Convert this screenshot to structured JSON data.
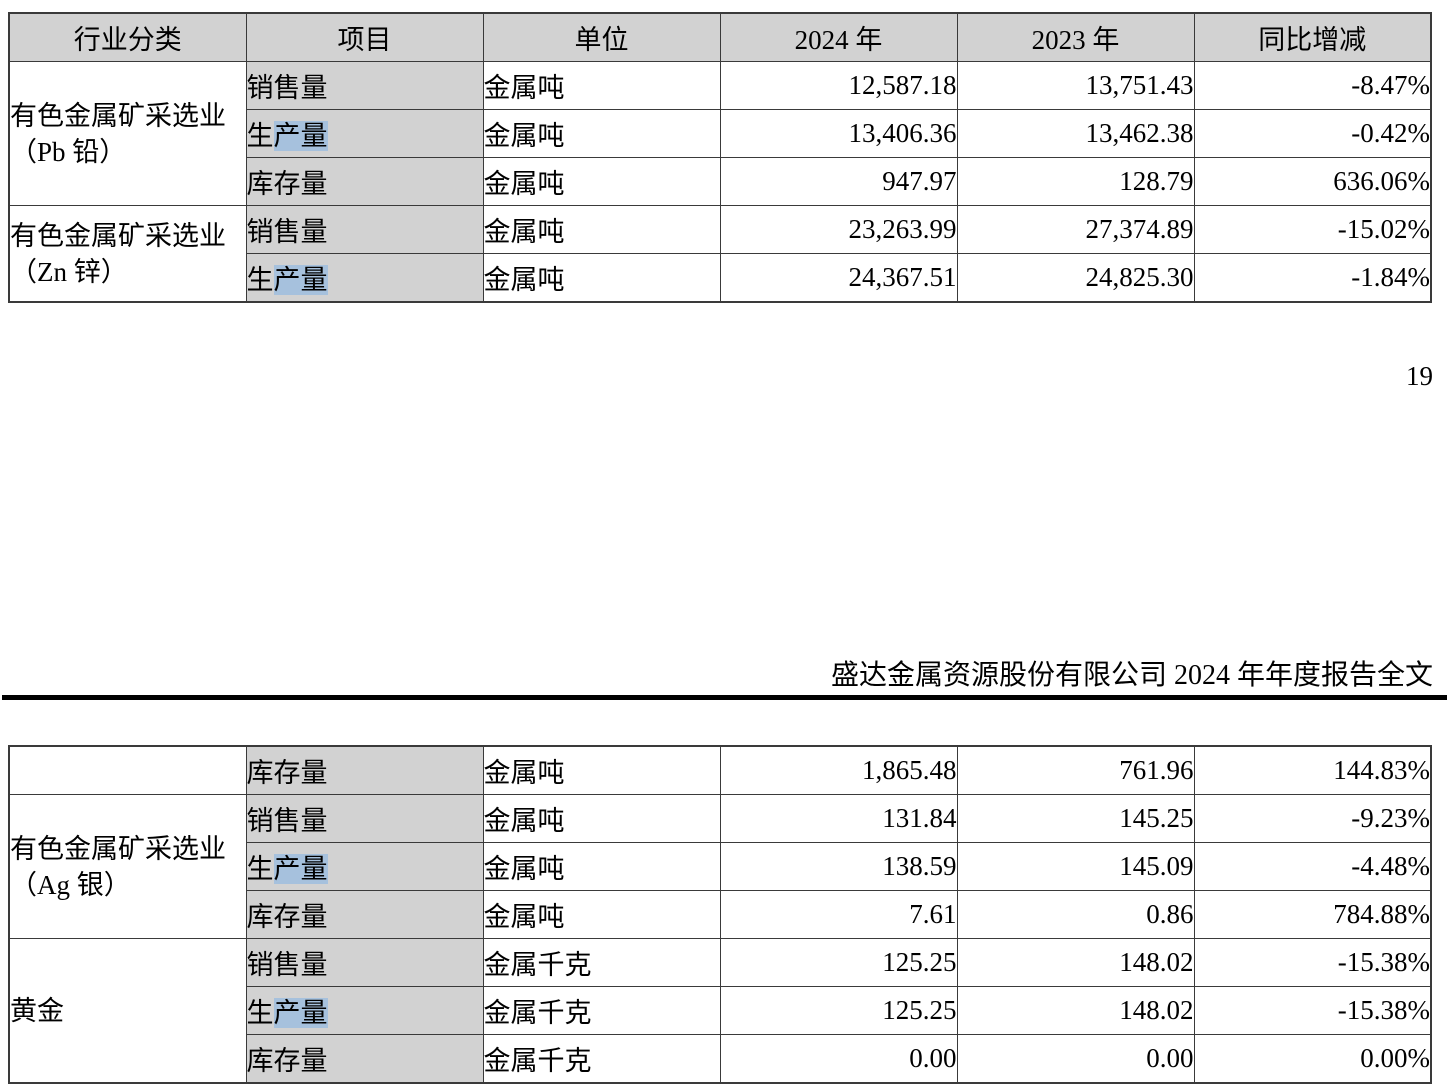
{
  "page": {
    "page_number": "19",
    "doc_header": "盛达金属资源股份有限公司 2024 年年度报告全文"
  },
  "colors": {
    "cell_shading": "#d2d2d2",
    "text_highlight": "#a6c1dd",
    "border": "#3a3a3a",
    "rule": "#000000"
  },
  "table1": {
    "headers": [
      "行业分类",
      "项目",
      "单位",
      "2024 年",
      "2023 年",
      "同比增减"
    ],
    "categories": [
      {
        "line1": "有色金属矿采选业",
        "line2": "（Pb 铅）"
      },
      {
        "line1": "有色金属矿采选业",
        "line2": "（Zn 锌）"
      }
    ],
    "rows": [
      {
        "item_plain": "销售量",
        "item_mark": "",
        "unit": "金属吨",
        "y2024": "12,587.18",
        "y2023": "13,751.43",
        "change": "-8.47%"
      },
      {
        "item_plain": "生",
        "item_mark": "产量",
        "unit": "金属吨",
        "y2024": "13,406.36",
        "y2023": "13,462.38",
        "change": "-0.42%"
      },
      {
        "item_plain": "库存量",
        "item_mark": "",
        "unit": "金属吨",
        "y2024": "947.97",
        "y2023": "128.79",
        "change": "636.06%"
      },
      {
        "item_plain": "销售量",
        "item_mark": "",
        "unit": "金属吨",
        "y2024": "23,263.99",
        "y2023": "27,374.89",
        "change": "-15.02%"
      },
      {
        "item_plain": "生",
        "item_mark": "产量",
        "unit": "金属吨",
        "y2024": "24,367.51",
        "y2023": "24,825.30",
        "change": "-1.84%"
      }
    ]
  },
  "table2": {
    "categories": [
      {
        "line1": "",
        "line2": ""
      },
      {
        "line1": "有色金属矿采选业",
        "line2": "（Ag 银）"
      },
      {
        "line1": "黄金",
        "line2": ""
      }
    ],
    "rows": [
      {
        "item_plain": "库存量",
        "item_mark": "",
        "unit": "金属吨",
        "y2024": "1,865.48",
        "y2023": "761.96",
        "change": "144.83%"
      },
      {
        "item_plain": "销售量",
        "item_mark": "",
        "unit": "金属吨",
        "y2024": "131.84",
        "y2023": "145.25",
        "change": "-9.23%"
      },
      {
        "item_plain": "生",
        "item_mark": "产量",
        "unit": "金属吨",
        "y2024": "138.59",
        "y2023": "145.09",
        "change": "-4.48%"
      },
      {
        "item_plain": "库存量",
        "item_mark": "",
        "unit": "金属吨",
        "y2024": "7.61",
        "y2023": "0.86",
        "change": "784.88%"
      },
      {
        "item_plain": "销售量",
        "item_mark": "",
        "unit": "金属千克",
        "y2024": "125.25",
        "y2023": "148.02",
        "change": "-15.38%"
      },
      {
        "item_plain": "生",
        "item_mark": "产量",
        "unit": "金属千克",
        "y2024": "125.25",
        "y2023": "148.02",
        "change": "-15.38%"
      },
      {
        "item_plain": "库存量",
        "item_mark": "",
        "unit": "金属千克",
        "y2024": "0.00",
        "y2023": "0.00",
        "change": "0.00%"
      }
    ]
  }
}
